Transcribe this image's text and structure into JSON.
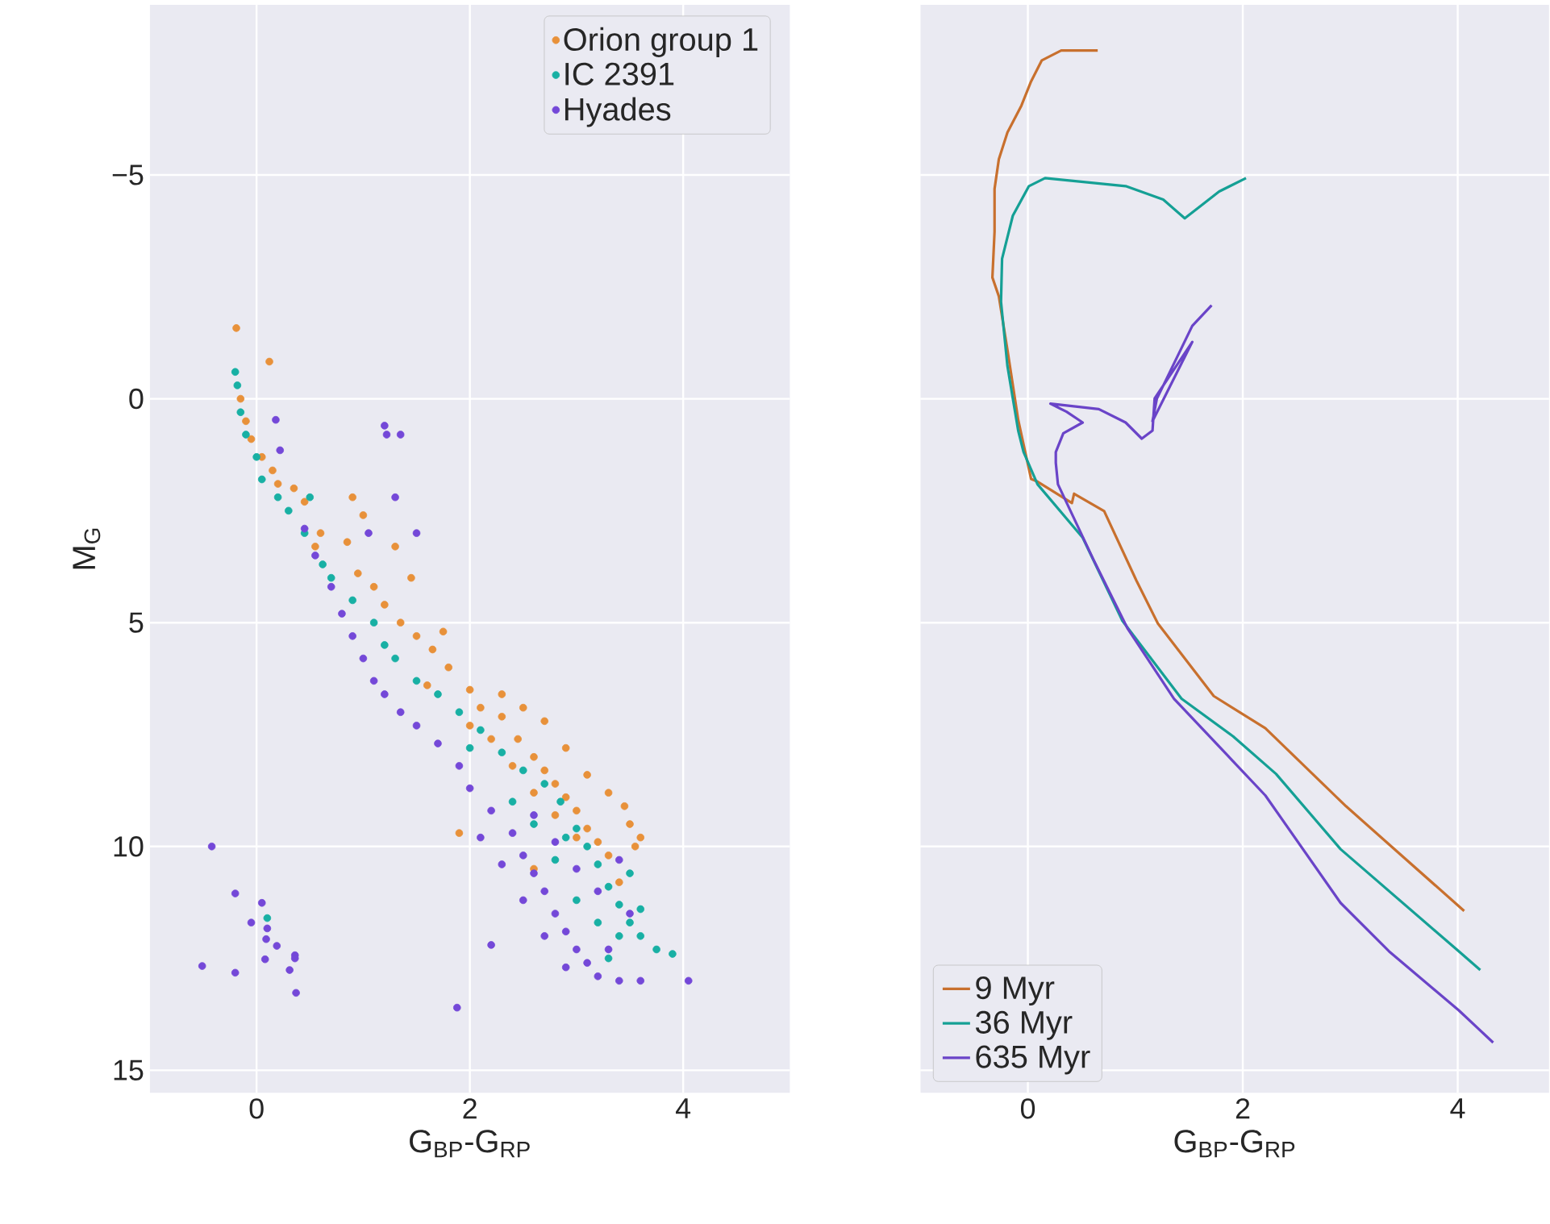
{
  "chart_data": [
    {
      "type": "scatter",
      "xlabel": "G$_{BP}$-G$_{RP}$",
      "ylabel": "M$_{G}$",
      "xlim": [
        -1,
        5
      ],
      "ylim": [
        15.5,
        -8.8
      ],
      "xticks": [
        0,
        2,
        4
      ],
      "yticks": [
        {
          "value": -5,
          "label": "−5"
        },
        0,
        5,
        10,
        15
      ],
      "grid": true,
      "legend": "top right",
      "marker": "circle",
      "series": [
        {
          "name": "Orion group 1",
          "color": "#e8913a",
          "x": [
            -0.19,
            0.12,
            -0.15,
            -0.1,
            -0.05,
            0.05,
            0.15,
            0.2,
            0.35,
            0.45,
            0.6,
            0.55,
            0.85,
            0.95,
            1.1,
            1.2,
            1.35,
            1.5,
            1.65,
            1.8,
            1.75,
            1.3,
            1.0,
            0.9,
            2.0,
            2.1,
            2.3,
            2.45,
            2.6,
            2.7,
            2.8,
            2.9,
            3.0,
            3.1,
            3.2,
            2.3,
            2.5,
            2.7,
            2.9,
            3.1,
            3.3,
            3.45,
            3.5,
            3.55,
            3.3,
            2.2,
            2.4,
            2.6,
            2.8,
            3.0,
            1.9,
            2.6,
            3.4,
            1.6,
            2.0,
            1.45,
            3.6
          ],
          "values": [
            -1.58,
            -0.83,
            0.0,
            0.5,
            0.9,
            1.3,
            1.6,
            1.9,
            2.0,
            2.3,
            3.0,
            3.3,
            3.2,
            3.9,
            4.2,
            4.6,
            5.0,
            5.3,
            5.6,
            6.0,
            5.2,
            3.3,
            2.6,
            2.2,
            6.5,
            6.9,
            7.1,
            7.6,
            8.0,
            8.3,
            8.6,
            8.9,
            9.2,
            9.6,
            9.9,
            6.6,
            6.9,
            7.2,
            7.8,
            8.4,
            8.8,
            9.1,
            9.5,
            10.0,
            10.2,
            7.6,
            8.2,
            8.8,
            9.3,
            9.8,
            9.7,
            10.5,
            10.8,
            6.4,
            7.3,
            4.0,
            9.8
          ]
        },
        {
          "name": "IC 2391",
          "color": "#18b0a4",
          "x": [
            -0.2,
            -0.18,
            -0.15,
            -0.1,
            0.0,
            0.05,
            0.2,
            0.3,
            0.45,
            0.62,
            0.7,
            0.9,
            1.1,
            1.3,
            1.5,
            1.7,
            1.9,
            2.1,
            2.3,
            2.5,
            2.7,
            2.85,
            3.0,
            3.1,
            3.2,
            3.3,
            3.4,
            3.5,
            3.6,
            3.75,
            3.9,
            3.3,
            3.0,
            2.8,
            2.6,
            2.4,
            3.5,
            3.6,
            3.2,
            2.0,
            1.2,
            0.5,
            3.4,
            2.9,
            0.1
          ],
          "values": [
            -0.6,
            -0.3,
            0.3,
            0.8,
            1.3,
            1.8,
            2.2,
            2.5,
            3.0,
            3.7,
            4.0,
            4.5,
            5.0,
            5.8,
            6.3,
            6.6,
            7.0,
            7.4,
            7.9,
            8.3,
            8.6,
            9.0,
            9.6,
            10.0,
            10.4,
            10.9,
            11.3,
            11.7,
            12.0,
            12.3,
            12.4,
            12.5,
            11.2,
            10.3,
            9.5,
            9.0,
            10.6,
            11.4,
            11.7,
            7.8,
            5.5,
            2.2,
            12.0,
            9.8,
            11.6
          ]
        },
        {
          "name": "Hyades",
          "color": "#7448d8",
          "x": [
            0.45,
            0.55,
            0.7,
            0.8,
            0.9,
            1.0,
            1.1,
            1.2,
            1.35,
            1.5,
            1.7,
            1.9,
            2.0,
            2.2,
            2.4,
            2.5,
            2.6,
            2.7,
            2.8,
            2.9,
            3.0,
            3.1,
            3.2,
            3.4,
            3.6,
            4.05,
            2.3,
            2.1,
            2.5,
            2.7,
            2.9,
            3.3,
            3.5,
            3.2,
            3.0,
            2.8,
            2.6,
            3.4,
            2.2,
            1.88,
            1.5,
            1.3,
            1.2,
            1.22,
            1.35,
            0.18,
            0.22,
            1.05,
            -0.42,
            -0.2,
            0.05,
            -0.05,
            0.1,
            0.09,
            0.19,
            0.36,
            0.36,
            -0.51,
            -0.2,
            0.08,
            0.31,
            0.37
          ],
          "values": [
            2.9,
            3.5,
            4.2,
            4.8,
            5.3,
            5.8,
            6.3,
            6.6,
            7.0,
            7.3,
            7.7,
            8.2,
            8.7,
            9.2,
            9.7,
            10.2,
            10.6,
            11.0,
            11.5,
            11.9,
            12.3,
            12.6,
            12.9,
            13.0,
            13.0,
            13.0,
            10.4,
            9.8,
            11.2,
            12.0,
            12.7,
            12.3,
            11.5,
            11.0,
            10.5,
            9.9,
            9.3,
            10.3,
            12.2,
            13.6,
            3.0,
            2.2,
            0.6,
            0.8,
            0.8,
            0.47,
            1.15,
            3.0,
            10.0,
            11.05,
            11.26,
            11.7,
            11.83,
            12.07,
            12.22,
            12.43,
            12.5,
            12.67,
            12.82,
            12.52,
            12.76,
            13.27
          ]
        }
      ]
    },
    {
      "type": "line",
      "xlabel": "G$_{BP}$-G$_{RP}$",
      "xlim": [
        -1,
        4.85
      ],
      "ylim": [
        15.5,
        -8.8
      ],
      "xticks": [
        0,
        2,
        4
      ],
      "yticks": [
        -5,
        0,
        5,
        10,
        15
      ],
      "grid": true,
      "legend": "bottom left",
      "tick_labels": "x",
      "series": [
        {
          "name": "9 Myr",
          "color": "#c8702e",
          "x": [
            4.06,
            2.96,
            2.21,
            1.73,
            1.21,
            1.01,
            0.71,
            0.43,
            0.41,
            0.09,
            0.03,
            -0.09,
            -0.19,
            -0.27,
            -0.33,
            -0.31,
            -0.31,
            -0.27,
            -0.19,
            -0.06,
            0.03,
            0.13,
            0.31,
            0.65
          ],
          "values": [
            11.44,
            9.1,
            7.36,
            6.64,
            5.02,
            4.06,
            2.51,
            2.12,
            2.33,
            1.85,
            1.79,
            0.47,
            -1.09,
            -2.29,
            -2.71,
            -3.73,
            -4.69,
            -5.35,
            -5.95,
            -6.55,
            -7.09,
            -7.56,
            -7.78,
            -7.78
          ]
        },
        {
          "name": "36 Myr",
          "color": "#15a095",
          "x": [
            4.21,
            4.01,
            2.91,
            2.31,
            1.91,
            1.43,
            0.88,
            0.51,
            0.09,
            -0.04,
            -0.09,
            -0.19,
            -0.25,
            -0.24,
            -0.14,
            0.01,
            0.16,
            0.91,
            1.26,
            1.46,
            1.78,
            2.03
          ],
          "values": [
            12.76,
            12.34,
            10.06,
            8.38,
            7.54,
            6.7,
            4.96,
            3.1,
            1.91,
            1.19,
            0.71,
            -0.73,
            -2.17,
            -3.13,
            -4.09,
            -4.75,
            -4.93,
            -4.75,
            -4.45,
            -4.03,
            -4.63,
            -4.93
          ]
        },
        {
          "name": "635 Myr",
          "color": "#6a44c8",
          "x": [
            4.33,
            4.01,
            3.36,
            2.91,
            2.21,
            1.36,
            0.93,
            0.61,
            0.28,
            0.26,
            0.26,
            0.33,
            0.51,
            0.36,
            0.21,
            0.66,
            0.91,
            1.06,
            1.16,
            1.18,
            1.53,
            1.16,
            1.2,
            1.53,
            1.71
          ],
          "values": [
            14.38,
            13.66,
            12.34,
            11.26,
            8.86,
            6.7,
            5.14,
            3.59,
            1.91,
            1.43,
            1.19,
            0.77,
            0.53,
            0.29,
            0.11,
            0.23,
            0.53,
            0.89,
            0.71,
            -0.01,
            -1.27,
            0.5,
            0.0,
            -1.63,
            -2.09
          ]
        }
      ]
    }
  ]
}
